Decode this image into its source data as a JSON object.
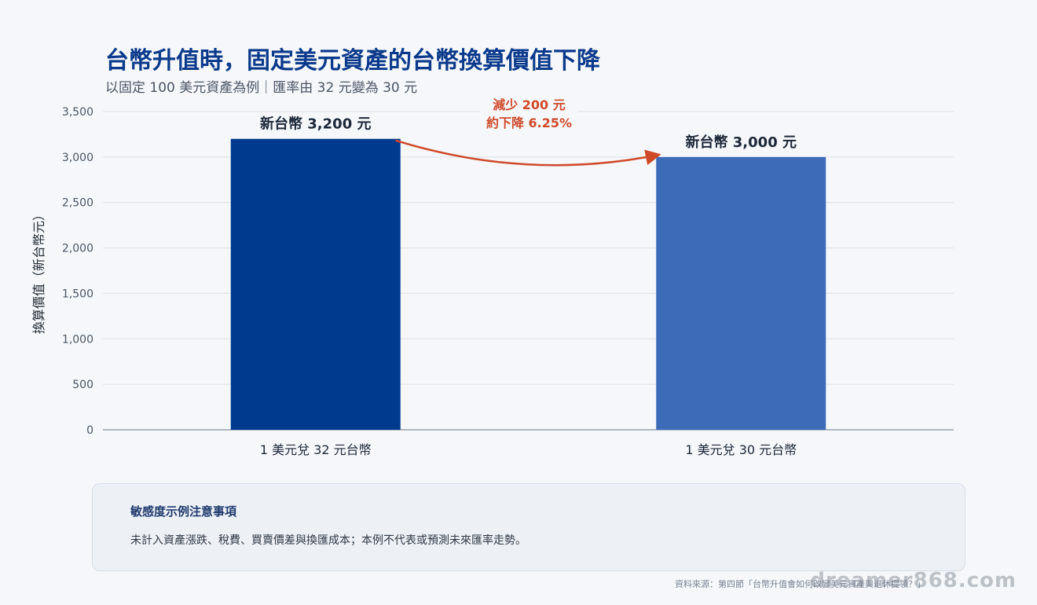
{
  "header": {
    "title": "台幣升值時，固定美元資產的台幣換算價值下降",
    "subtitle": "以固定 100 美元資產為例｜匯率由 32 元變為 30 元"
  },
  "chart_data": {
    "type": "bar",
    "title": "台幣升值時，固定美元資產的台幣換算價值下降",
    "ylabel": "換算價值（新台幣元）",
    "xlabel": "",
    "categories": [
      "1 美元兌 32 元台幣",
      "1 美元兌 30 元台幣"
    ],
    "values": [
      3200,
      3000
    ],
    "data_labels": [
      "新台幣 3,200 元",
      "新台幣 3,000 元"
    ],
    "bar_colors": [
      "#003a8f",
      "#3d6bb7"
    ],
    "ylim": [
      0,
      3500
    ],
    "yticks": [
      0,
      500,
      1000,
      1500,
      2000,
      2500,
      3000,
      3500
    ],
    "ytick_labels": [
      "0",
      "500",
      "1,000",
      "1,500",
      "2,000",
      "2,500",
      "3,000",
      "3,500"
    ],
    "grid": true,
    "annotation": {
      "lines": [
        "減少 200 元",
        "約下降 6.25%"
      ],
      "color": "#d04a2a"
    }
  },
  "note": {
    "title": "敏感度示例注意事項",
    "body": "未計入資產漲跌、稅費、買賣價差與換匯成本；本例不代表或預測未來匯率走勢。"
  },
  "footer": {
    "source": "資料來源：第四節「台幣升值會如何改變美元資產與退休提領？」",
    "watermark": "dreamer868.com"
  }
}
